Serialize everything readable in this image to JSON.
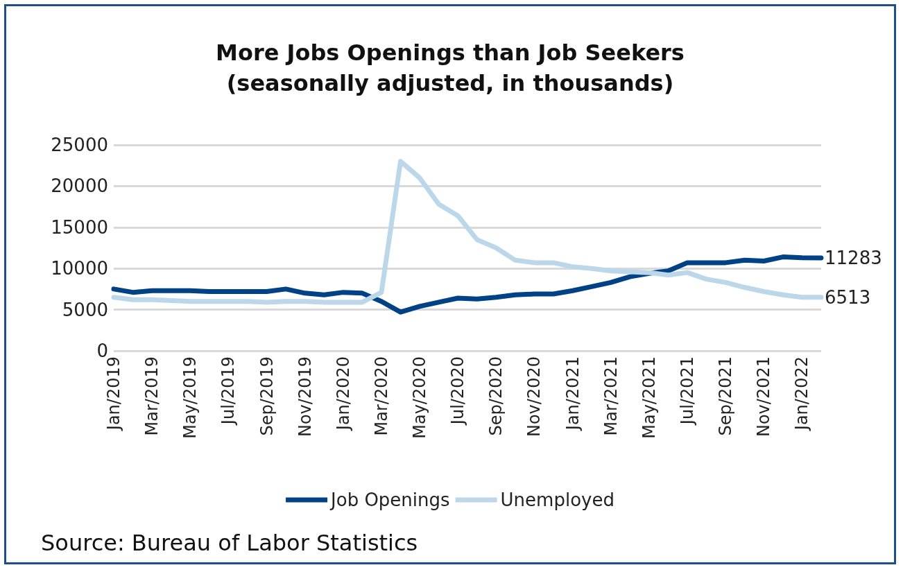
{
  "chart_data": {
    "type": "line",
    "title": "More Jobs Openings than Job Seekers\n(seasonally adjusted, in thousands)",
    "categories": [
      "Jan/2019",
      null,
      "Mar/2019",
      null,
      "May/2019",
      null,
      "Jul/2019",
      null,
      "Sep/2019",
      null,
      "Nov/2019",
      null,
      "Jan/2020",
      null,
      "Mar/2020",
      null,
      "May/2020",
      null,
      "Jul/2020",
      null,
      "Sep/2020",
      null,
      "Nov/2020",
      null,
      "Jan/2021",
      null,
      "Mar/2021",
      null,
      "May/2021",
      null,
      "Jul/2021",
      null,
      "Sep/2021",
      null,
      "Nov/2021",
      null,
      "Jan/2022",
      null
    ],
    "series": [
      {
        "name": "Job Openings",
        "color": "#004285",
        "values": [
          7500,
          7100,
          7300,
          7300,
          7300,
          7200,
          7200,
          7200,
          7200,
          7500,
          7000,
          6800,
          7100,
          7000,
          6000,
          4700,
          5400,
          5900,
          6400,
          6300,
          6500,
          6800,
          6900,
          6900,
          7300,
          7800,
          8300,
          9000,
          9400,
          9700,
          10700,
          10700,
          10700,
          11000,
          10900,
          11400,
          11300,
          11283
        ],
        "value_labels": [
          null,
          null,
          null,
          null,
          null,
          null,
          null,
          null,
          null,
          null,
          null,
          null,
          null,
          null,
          null,
          null,
          null,
          null,
          null,
          null,
          null,
          null,
          null,
          null,
          null,
          null,
          null,
          null,
          null,
          null,
          null,
          null,
          null,
          null,
          null,
          null,
          null,
          "11283"
        ]
      },
      {
        "name": "Unemployed",
        "color": "#bdd7ea",
        "values": [
          6500,
          6200,
          6200,
          6100,
          6000,
          6000,
          6000,
          6000,
          5900,
          6000,
          6000,
          5900,
          5900,
          5900,
          7100,
          23000,
          21000,
          17800,
          16400,
          13500,
          12500,
          11000,
          10700,
          10700,
          10200,
          10000,
          9700,
          9600,
          9500,
          9200,
          9500,
          8700,
          8300,
          7700,
          7200,
          6800,
          6500,
          6513
        ],
        "value_labels": [
          null,
          null,
          null,
          null,
          null,
          null,
          null,
          null,
          null,
          null,
          null,
          null,
          null,
          null,
          null,
          null,
          null,
          null,
          null,
          null,
          null,
          null,
          null,
          null,
          null,
          null,
          null,
          null,
          null,
          null,
          null,
          null,
          null,
          null,
          null,
          null,
          null,
          "6513"
        ]
      }
    ],
    "ylim": [
      0,
      25000
    ],
    "yticks": [
      0,
      5000,
      10000,
      15000,
      20000,
      25000
    ],
    "grid": "y",
    "legend": "bottom",
    "marker": "none",
    "line_style": "solid",
    "annotations": [
      "Source: Bureau of Labor Statistics"
    ]
  }
}
